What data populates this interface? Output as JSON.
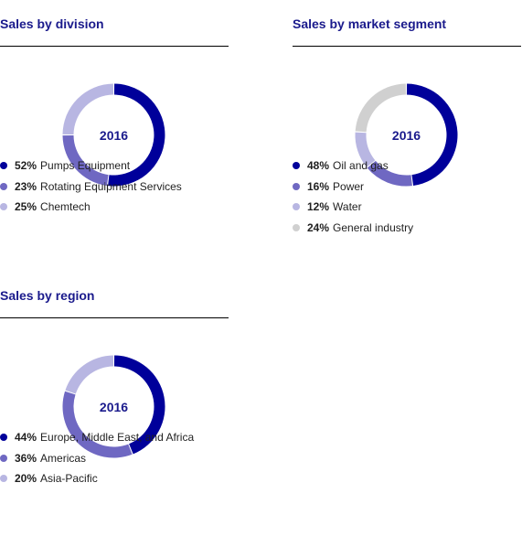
{
  "charts": [
    {
      "title": "Sales by division",
      "center_label": "2016",
      "colors": [
        "#00009a",
        "#6f68c2",
        "#b8b6e2"
      ],
      "legend": [
        {
          "pct": "52%",
          "label": "Pumps Equipment"
        },
        {
          "pct": "23%",
          "label": "Rotating Equipment Services"
        },
        {
          "pct": "25%",
          "label": "Chemtech"
        }
      ]
    },
    {
      "title": "Sales by market segment",
      "center_label": "2016",
      "colors": [
        "#00009a",
        "#6f68c2",
        "#b8b6e2",
        "#d0d0d0"
      ],
      "legend": [
        {
          "pct": "48%",
          "label": "Oil and gas"
        },
        {
          "pct": "16%",
          "label": "Power"
        },
        {
          "pct": "12%",
          "label": "Water"
        },
        {
          "pct": "24%",
          "label": "General industry"
        }
      ]
    },
    {
      "title": "Sales by region",
      "center_label": "2016",
      "colors": [
        "#00009a",
        "#6f68c2",
        "#b8b6e2"
      ],
      "legend": [
        {
          "pct": "44%",
          "label": "Europe, Middle East, and Africa"
        },
        {
          "pct": "36%",
          "label": "Americas"
        },
        {
          "pct": "20%",
          "label": "Asia-Pacific"
        }
      ]
    }
  ],
  "chart_data": [
    {
      "type": "pie",
      "title": "Sales by division",
      "center_label": "2016",
      "categories": [
        "Pumps Equipment",
        "Rotating Equipment Services",
        "Chemtech"
      ],
      "values": [
        52,
        23,
        25
      ],
      "unit": "%",
      "colors": [
        "#00009a",
        "#6f68c2",
        "#b8b6e2"
      ],
      "legend_position": "bottom"
    },
    {
      "type": "pie",
      "title": "Sales by market segment",
      "center_label": "2016",
      "categories": [
        "Oil and gas",
        "Power",
        "Water",
        "General industry"
      ],
      "values": [
        48,
        16,
        12,
        24
      ],
      "unit": "%",
      "colors": [
        "#00009a",
        "#6f68c2",
        "#b8b6e2",
        "#d0d0d0"
      ],
      "legend_position": "bottom"
    },
    {
      "type": "pie",
      "title": "Sales by region",
      "center_label": "2016",
      "categories": [
        "Europe, Middle East, and Africa",
        "Americas",
        "Asia-Pacific"
      ],
      "values": [
        44,
        36,
        20
      ],
      "unit": "%",
      "colors": [
        "#00009a",
        "#6f68c2",
        "#b8b6e2"
      ],
      "legend_position": "bottom"
    }
  ]
}
